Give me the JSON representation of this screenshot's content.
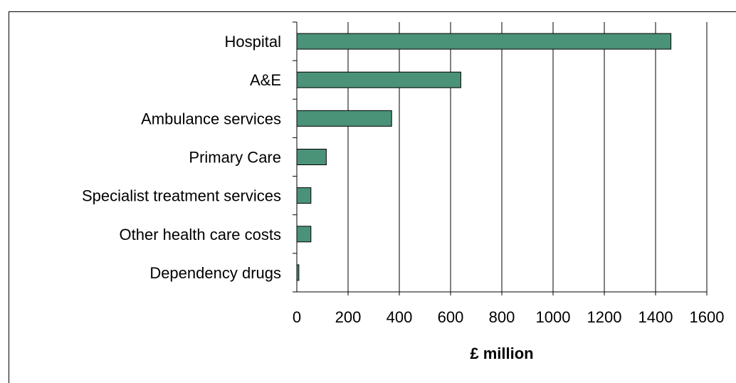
{
  "chart_data": {
    "type": "bar",
    "orientation": "horizontal",
    "categories": [
      "Hospital",
      "A&E",
      "Ambulance services",
      "Primary Care",
      "Specialist treatment services",
      "Other health care costs",
      "Dependency drugs"
    ],
    "values": [
      1460,
      640,
      370,
      115,
      55,
      55,
      8
    ],
    "xlabel": "£ million",
    "xlim": [
      0,
      1600
    ],
    "xticks": [
      "0",
      "200",
      "400",
      "600",
      "800",
      "1000",
      "1200",
      "1400",
      "1600"
    ],
    "grid": "vertical",
    "bar_color": "#4a9278",
    "legend": "none"
  }
}
